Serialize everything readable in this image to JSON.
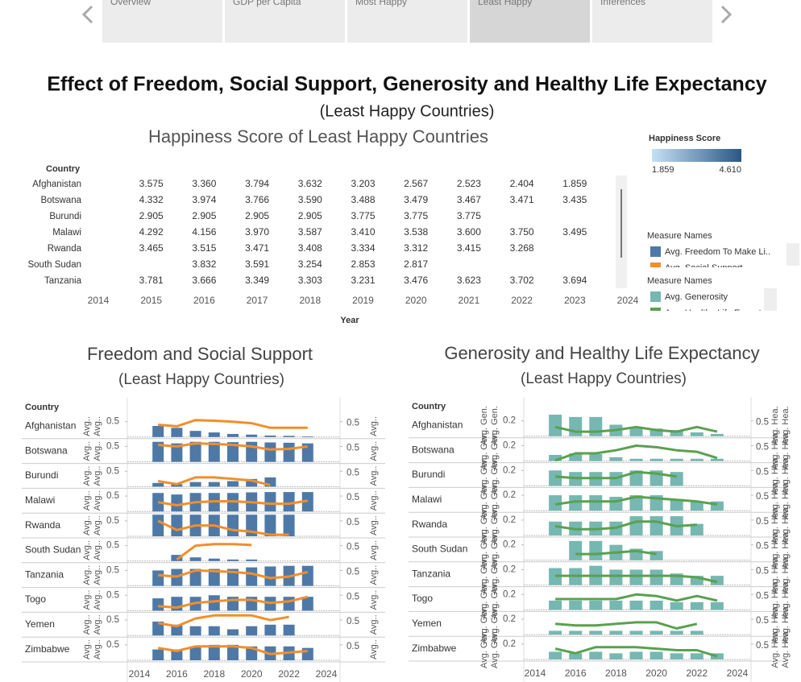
{
  "nav": {
    "tabs": [
      "Overview",
      "GDP per Capita",
      "Most Happy",
      "Least Happy",
      "Inferences"
    ],
    "selected": 3
  },
  "header": {
    "title": "Effect of Freedom, Social Support, Generosity and Healthy Life Expectancy",
    "subtitle": "(Least Happy Countries)"
  },
  "heatmap": {
    "title": "Happiness Score of Least Happy Countries",
    "row_header": "Country",
    "x_label": "Year",
    "xticks": [
      2014,
      2015,
      2016,
      2017,
      2018,
      2019,
      2020,
      2021,
      2022,
      2023,
      2024
    ],
    "columns": [
      2015,
      2016,
      2017,
      2018,
      2019,
      2020,
      2021,
      2022,
      2023
    ],
    "rows": [
      {
        "label": "Afghanistan",
        "cells": [
          "3.575",
          "3.360",
          "3.794",
          "3.632",
          "3.203",
          "2.567",
          "2.523",
          "2.404",
          "1.859"
        ]
      },
      {
        "label": "Botswana",
        "cells": [
          "4.332",
          "3.974",
          "3.766",
          "3.590",
          "3.488",
          "3.479",
          "3.467",
          "3.471",
          "3.435"
        ]
      },
      {
        "label": "Burundi",
        "cells": [
          "2.905",
          "2.905",
          "2.905",
          "2.905",
          "3.775",
          "3.775",
          "3.775",
          null,
          null
        ]
      },
      {
        "label": "Malawi",
        "cells": [
          "4.292",
          "4.156",
          "3.970",
          "3.587",
          "3.410",
          "3.538",
          "3.600",
          "3.750",
          "3.495"
        ]
      },
      {
        "label": "Rwanda",
        "cells": [
          "3.465",
          "3.515",
          "3.471",
          "3.408",
          "3.334",
          "3.312",
          "3.415",
          "3.268",
          null
        ]
      },
      {
        "label": "South Sudan",
        "cells": [
          null,
          "3.832",
          "3.591",
          "3.254",
          "2.853",
          "2.817",
          null,
          null,
          null
        ]
      },
      {
        "label": "Tanzania",
        "cells": [
          "3.781",
          "3.666",
          "3.349",
          "3.303",
          "3.231",
          "3.476",
          "3.623",
          "3.702",
          "3.694"
        ]
      }
    ],
    "legend": {
      "title": "Happiness Score",
      "min_label": "1.859",
      "max_label": "4.610"
    }
  },
  "measure_legends": [
    {
      "title": "Measure Names"
    },
    {
      "title": "Measure Names"
    }
  ],
  "chart_data": [
    {
      "type": "bar",
      "title": "Freedom and Social Support",
      "subtitle": "(Least Happy Countries)",
      "row_header": "Country",
      "facets": [
        "Afghanistan",
        "Botswana",
        "Burundi",
        "Malawi",
        "Rwanda",
        "South Sudan",
        "Tanzania",
        "Togo",
        "Yemen",
        "Zimbabwe"
      ],
      "x": [
        2015,
        2016,
        2017,
        2018,
        2019,
        2020,
        2021,
        2022,
        2023
      ],
      "xlim": [
        2014,
        2024
      ],
      "xticks": [
        2014,
        2016,
        2018,
        2020,
        2022,
        2024
      ],
      "ylim": [
        0,
        0.7
      ],
      "yticks": [
        0.5
      ],
      "y2lim": [
        0,
        0.7
      ],
      "y2ticks": [
        0.5
      ],
      "y_label": "Avg..",
      "y2_label": "Avg..",
      "series": [
        {
          "name": "Avg. Freedom To Make Li..",
          "color": "#4e79a7",
          "mark": "bar",
          "values": [
            [
              0.36,
              0.3,
              0.2,
              0.15,
              0.1,
              0.08,
              0.05,
              0.04,
              0.02
            ],
            [
              0.65,
              0.6,
              0.65,
              0.65,
              0.64,
              0.65,
              0.63,
              0.62,
              0.6
            ],
            [
              0.12,
              0.08,
              0.15,
              0.15,
              0.18,
              0.25,
              0.3,
              null,
              null
            ],
            [
              0.6,
              0.55,
              0.6,
              0.6,
              0.6,
              0.62,
              0.63,
              0.63,
              0.63
            ],
            [
              0.7,
              0.7,
              0.7,
              0.7,
              0.7,
              0.7,
              0.7,
              0.7,
              null
            ],
            [
              null,
              0.2,
              0.12,
              0.08,
              0.05,
              0.05,
              null,
              null,
              null
            ],
            [
              0.5,
              0.55,
              0.55,
              0.55,
              0.55,
              0.6,
              0.63,
              0.65,
              0.65
            ],
            [
              0.4,
              0.45,
              0.45,
              0.5,
              0.45,
              0.45,
              0.45,
              0.45,
              0.45
            ],
            [
              0.45,
              0.35,
              0.3,
              0.3,
              0.2,
              0.3,
              0.35,
              0.35,
              null
            ],
            [
              0.35,
              0.35,
              0.45,
              0.5,
              0.5,
              0.45,
              0.45,
              0.45,
              0.4
            ]
          ]
        },
        {
          "name": "Avg. Social Support",
          "color": "#f28e2b",
          "mark": "line",
          "axis": "y2",
          "values": [
            [
              0.4,
              0.35,
              0.55,
              0.53,
              0.5,
              0.45,
              0.3,
              0.3,
              0.3
            ],
            [
              0.55,
              0.5,
              0.6,
              0.58,
              0.55,
              0.5,
              0.4,
              0.42,
              0.5
            ],
            [
              0.18,
              0.08,
              0.3,
              0.3,
              0.25,
              0.2,
              0.05,
              null,
              null
            ],
            [
              0.3,
              0.2,
              0.3,
              0.33,
              0.33,
              0.3,
              0.25,
              0.25,
              0.35
            ],
            [
              0.5,
              0.2,
              0.35,
              0.35,
              0.2,
              0.15,
              0.05,
              0.05,
              null
            ],
            [
              null,
              0.05,
              0.5,
              0.55,
              0.55,
              0.52,
              null,
              null,
              null
            ],
            [
              0.35,
              0.3,
              0.5,
              0.48,
              0.45,
              0.4,
              0.25,
              0.3,
              0.45
            ],
            [
              0.15,
              0.1,
              0.25,
              0.3,
              0.35,
              0.35,
              0.25,
              0.3,
              0.45
            ],
            [
              0.4,
              0.3,
              0.55,
              0.65,
              0.65,
              0.65,
              0.5,
              0.6,
              null
            ],
            [
              0.4,
              0.3,
              0.45,
              0.45,
              0.45,
              0.4,
              0.2,
              0.25,
              0.3
            ]
          ]
        }
      ]
    },
    {
      "type": "bar",
      "title": "Generosity and Healthy Life Expectancy",
      "subtitle": "(Least Happy Countries)",
      "row_header": "Country",
      "facets": [
        "Afghanistan",
        "Botswana",
        "Burundi",
        "Malawi",
        "Rwanda",
        "South Sudan",
        "Tanzania",
        "Togo",
        "Yemen",
        "Zimbabwe"
      ],
      "x": [
        2015,
        2016,
        2017,
        2018,
        2019,
        2020,
        2021,
        2022,
        2023
      ],
      "xlim": [
        2014,
        2024
      ],
      "xticks": [
        2014,
        2016,
        2018,
        2020,
        2022,
        2024
      ],
      "ylim": [
        0,
        0.28
      ],
      "yticks": [
        0.2
      ],
      "y2lim": [
        0,
        0.7
      ],
      "y2ticks": [
        0.5
      ],
      "y_label": "Avg. Gen.",
      "y2_label": "Avg. Hea.",
      "series": [
        {
          "name": "Avg. Generosity",
          "color": "#76b7b2",
          "mark": "bar",
          "values": [
            [
              0.28,
              0.25,
              0.25,
              0.15,
              0.12,
              0.1,
              0.08,
              0.05,
              0.03
            ],
            [
              0.08,
              0.1,
              0.09,
              0.05,
              0.03,
              0.03,
              0.03,
              0.03,
              0.03
            ],
            [
              0.2,
              0.18,
              0.18,
              0.18,
              0.2,
              0.2,
              0.18,
              null,
              null
            ],
            [
              0.2,
              0.2,
              0.2,
              0.18,
              0.2,
              0.2,
              0.15,
              0.12,
              0.12
            ],
            [
              0.18,
              0.18,
              0.18,
              0.18,
              0.25,
              0.25,
              0.25,
              0.15,
              null
            ],
            [
              null,
              0.25,
              0.25,
              0.2,
              0.15,
              0.12,
              null,
              null,
              null
            ],
            [
              0.22,
              0.22,
              0.25,
              0.2,
              0.2,
              0.2,
              0.15,
              0.12,
              0.12
            ],
            [
              0.12,
              0.12,
              0.12,
              0.12,
              0.12,
              0.12,
              0.1,
              0.1,
              0.1
            ],
            [
              0.05,
              0.05,
              0.05,
              0.05,
              0.05,
              0.05,
              0.05,
              0.05,
              null
            ],
            [
              0.1,
              0.08,
              0.1,
              0.08,
              0.1,
              0.1,
              0.08,
              0.08,
              0.08
            ]
          ]
        },
        {
          "name": "Avg. Healthy Life Expectancy",
          "color": "#59a14f",
          "mark": "line",
          "axis": "y2",
          "values": [
            [
              0.3,
              0.15,
              0.15,
              0.2,
              0.3,
              0.2,
              0.15,
              0.3,
              0.15
            ],
            [
              0.02,
              0.25,
              0.25,
              0.35,
              0.5,
              0.45,
              0.35,
              0.3,
              0.1
            ],
            [
              0.3,
              0.25,
              0.25,
              0.25,
              0.45,
              0.4,
              0.3,
              null,
              null
            ],
            [
              0.2,
              0.3,
              0.3,
              0.3,
              0.45,
              0.4,
              0.35,
              0.3,
              0.2
            ],
            [
              0.3,
              0.2,
              0.2,
              0.25,
              0.45,
              0.45,
              0.3,
              0.35,
              null
            ],
            [
              null,
              0.2,
              0.2,
              0.25,
              0.3,
              0.2,
              null,
              null,
              null
            ],
            [
              0.3,
              0.3,
              0.3,
              0.3,
              0.3,
              0.3,
              0.3,
              0.25,
              0.1
            ],
            [
              0.35,
              0.35,
              0.35,
              0.35,
              0.5,
              0.45,
              0.3,
              0.45,
              0.3
            ],
            [
              0.35,
              0.3,
              0.3,
              0.35,
              0.4,
              0.4,
              0.2,
              0.35,
              null
            ],
            [
              0.35,
              0.2,
              0.4,
              0.4,
              0.4,
              0.35,
              0.3,
              0.3,
              0.1
            ]
          ]
        }
      ]
    }
  ]
}
